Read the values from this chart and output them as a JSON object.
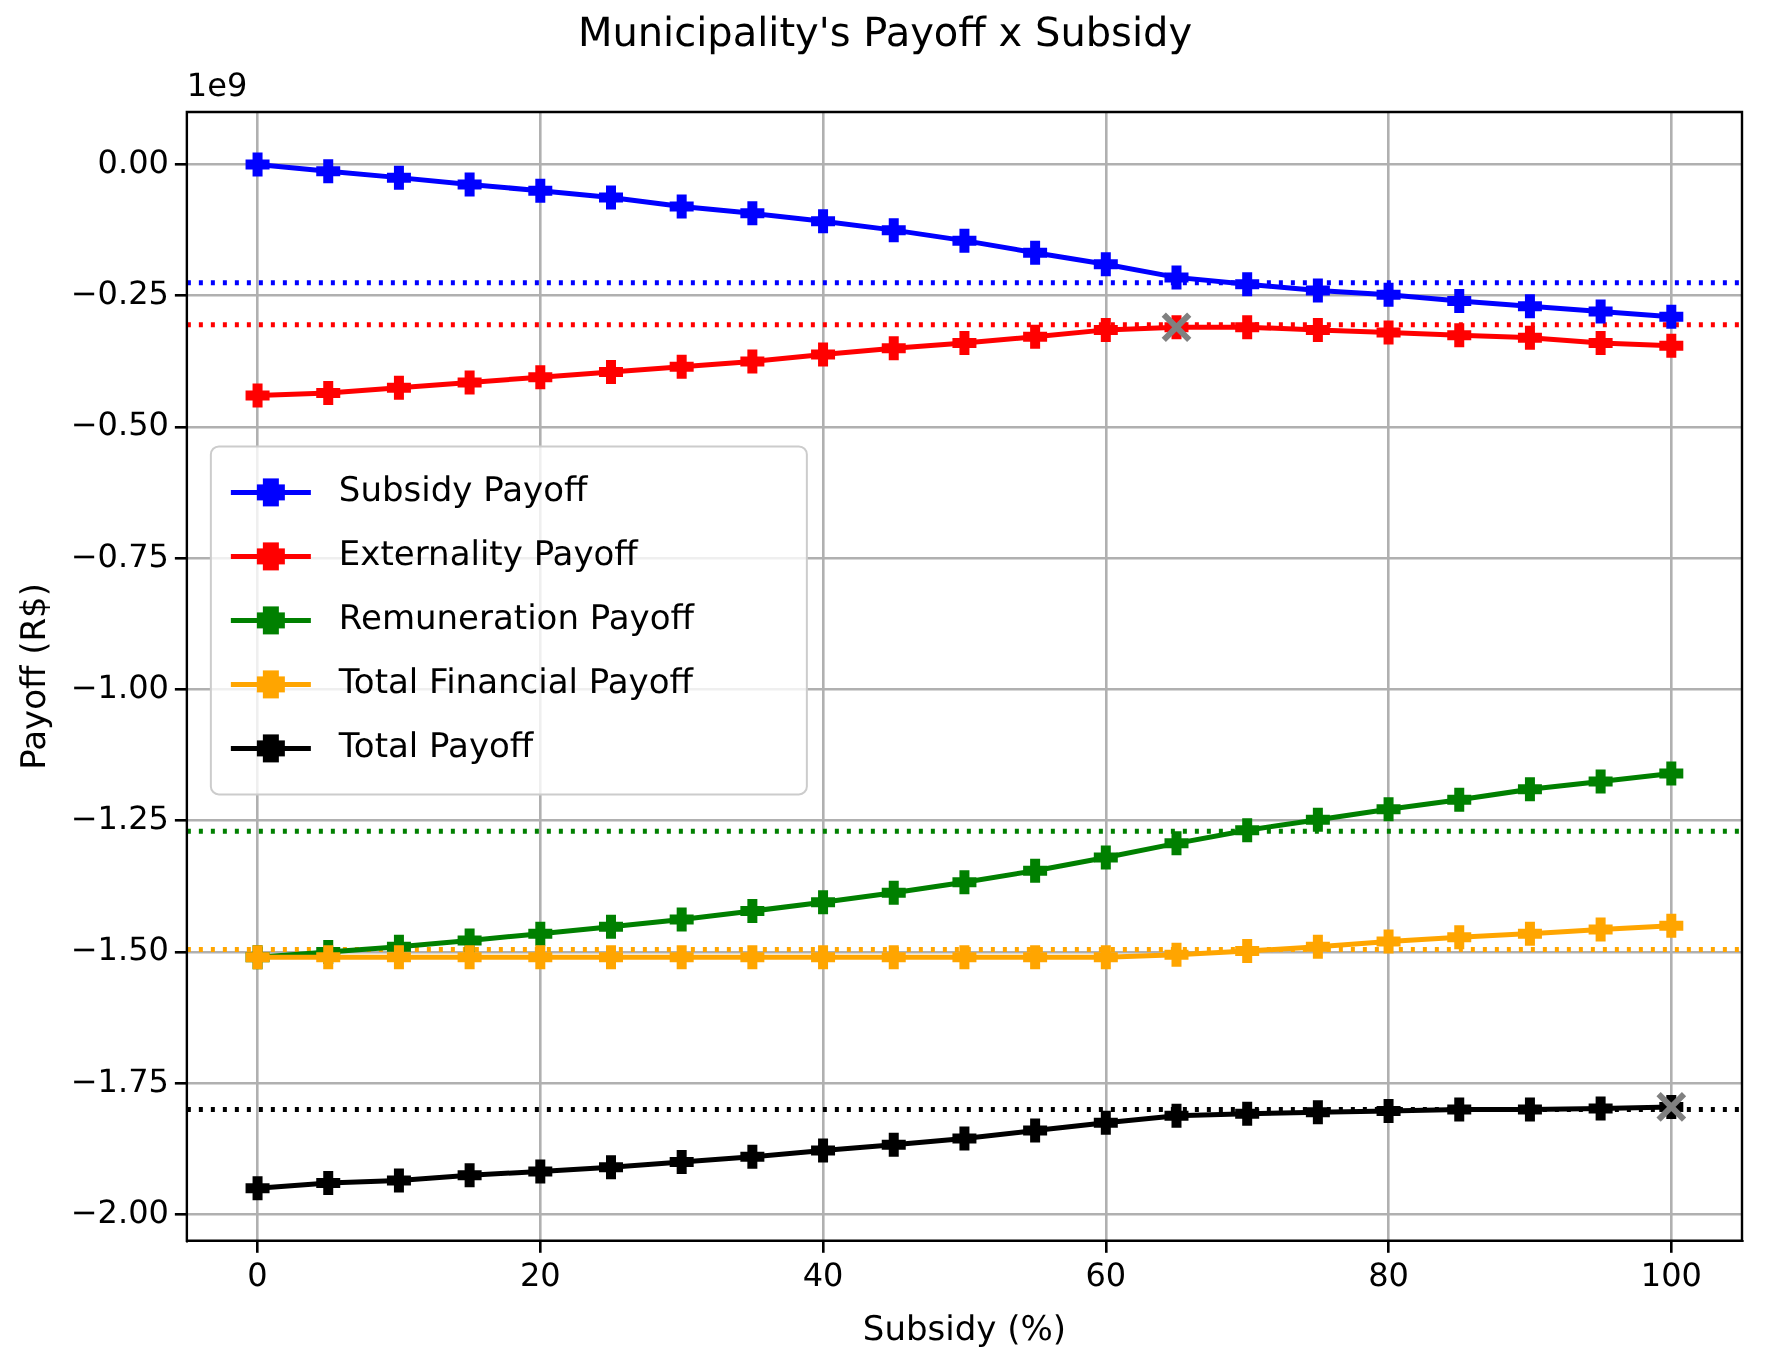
{
  "chart_data": {
    "type": "line",
    "title": "Municipality's Payoff x Subsidy",
    "xlabel": "Subsidy (%)",
    "ylabel": "Payoff (R$)",
    "annotations": [
      "1e9"
    ],
    "x": [
      0,
      5,
      10,
      15,
      20,
      25,
      30,
      35,
      40,
      45,
      50,
      55,
      60,
      65,
      70,
      75,
      80,
      85,
      90,
      95,
      100
    ],
    "series": [
      {
        "name": "Subsidy Payoff",
        "color": "#0000ff",
        "marker": "cross",
        "values": [
          0.0,
          -0.013,
          -0.025,
          -0.038,
          -0.05,
          -0.063,
          -0.08,
          -0.093,
          -0.108,
          -0.125,
          -0.145,
          -0.168,
          -0.19,
          -0.215,
          -0.228,
          -0.24,
          -0.248,
          -0.26,
          -0.27,
          -0.28,
          -0.29
        ]
      },
      {
        "name": "Externality Payoff",
        "color": "#ff0000",
        "marker": "cross",
        "values": [
          -0.44,
          -0.435,
          -0.425,
          -0.415,
          -0.405,
          -0.395,
          -0.385,
          -0.375,
          -0.362,
          -0.35,
          -0.34,
          -0.328,
          -0.315,
          -0.31,
          -0.31,
          -0.315,
          -0.32,
          -0.325,
          -0.33,
          -0.34,
          -0.345
        ]
      },
      {
        "name": "Remuneration Payoff",
        "color": "#008000",
        "marker": "cross",
        "values": [
          -1.51,
          -1.5,
          -1.49,
          -1.478,
          -1.465,
          -1.452,
          -1.438,
          -1.422,
          -1.405,
          -1.387,
          -1.367,
          -1.345,
          -1.32,
          -1.293,
          -1.268,
          -1.248,
          -1.228,
          -1.21,
          -1.19,
          -1.175,
          -1.16
        ]
      },
      {
        "name": "Total Financial Payoff",
        "color": "#ffa500",
        "marker": "cross",
        "values": [
          -1.51,
          -1.51,
          -1.51,
          -1.51,
          -1.51,
          -1.51,
          -1.51,
          -1.51,
          -1.51,
          -1.51,
          -1.51,
          -1.51,
          -1.51,
          -1.505,
          -1.498,
          -1.49,
          -1.48,
          -1.472,
          -1.465,
          -1.457,
          -1.45
        ]
      },
      {
        "name": "Total Payoff",
        "color": "#000000",
        "marker": "cross",
        "values": [
          -1.95,
          -1.94,
          -1.935,
          -1.925,
          -1.918,
          -1.91,
          -1.9,
          -1.89,
          -1.878,
          -1.867,
          -1.855,
          -1.84,
          -1.825,
          -1.812,
          -1.808,
          -1.805,
          -1.803,
          -1.8,
          -1.8,
          -1.798,
          -1.795
        ]
      },
      {
        "type": "scatter",
        "color": "#808080",
        "marker": "x",
        "x": [
          65,
          100
        ],
        "values": [
          -0.31,
          -1.795
        ]
      }
    ],
    "ref_lines": [
      {
        "axis": "y",
        "value": -0.225,
        "color": "#0000ff",
        "line_style": "dotted"
      },
      {
        "axis": "y",
        "value": -0.305,
        "color": "#ff0000",
        "line_style": "dotted"
      },
      {
        "axis": "y",
        "value": -1.27,
        "color": "#008000",
        "line_style": "dotted"
      },
      {
        "axis": "y",
        "value": -1.495,
        "color": "#ffa500",
        "line_style": "dotted"
      },
      {
        "axis": "y",
        "value": -1.8,
        "color": "#000000",
        "line_style": "dotted"
      }
    ],
    "xlim": [
      -5,
      105
    ],
    "xticks": [
      0,
      20,
      40,
      60,
      80,
      100
    ],
    "ylim": [
      -2.05,
      0.1
    ],
    "yticks": [
      {
        "value": 0,
        "label": "0.00"
      },
      {
        "value": -0.25,
        "label": "−0.25"
      },
      {
        "value": -0.5,
        "label": "−0.50"
      },
      {
        "value": -0.75,
        "label": "−0.75"
      },
      {
        "value": -1,
        "label": "−1.00"
      },
      {
        "value": -1.25,
        "label": "−1.25"
      },
      {
        "value": -1.5,
        "label": "−1.50"
      },
      {
        "value": -1.75,
        "label": "−1.75"
      },
      {
        "value": -2,
        "label": "−2.00"
      }
    ],
    "grid": true,
    "legend": "left",
    "line_style": "solid"
  }
}
